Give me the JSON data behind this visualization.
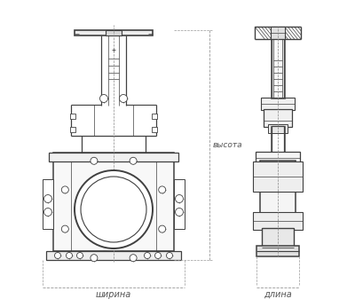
{
  "bg_color": "#ffffff",
  "line_color": "#404040",
  "dim_color": "#404040",
  "label_shrina": "ширина",
  "label_dlina": "длина",
  "label_vysota": "высота",
  "fig_width": 4.0,
  "fig_height": 3.46,
  "dpi": 100
}
